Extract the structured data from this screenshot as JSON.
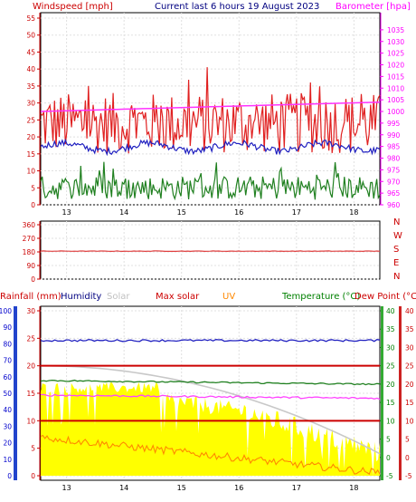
{
  "chart_data": [
    {
      "type": "line",
      "title": "Current last 6 hours 19 August 2023",
      "left_label": "Windspeed [mph]",
      "right_label": "Barometer [hpa]",
      "x": [
        "13",
        "14",
        "15",
        "16",
        "17",
        "18"
      ],
      "xlim": [
        12.55,
        18.45
      ],
      "ylim_left": [
        0,
        55
      ],
      "yticks_left": [
        "0",
        "5",
        "10",
        "15",
        "20",
        "25",
        "30",
        "35",
        "40",
        "45",
        "50",
        "55"
      ],
      "ylim_right": [
        960,
        1040
      ],
      "yticks_right": [
        "960",
        "965",
        "970",
        "975",
        "980",
        "985",
        "990",
        "995",
        "1000",
        "1005",
        "1010",
        "1015",
        "1020",
        "1025",
        "1030",
        "1035"
      ],
      "grid": true,
      "series": [
        {
          "color": "#e02020",
          "y_approx_mean": 24,
          "range": [
            15,
            38
          ]
        },
        {
          "color": "#2020c0",
          "y_approx_mean": 17,
          "range": [
            15,
            19
          ]
        },
        {
          "color": "#208020",
          "y_approx_mean": 5,
          "range": [
            1,
            12
          ]
        },
        {
          "color": "#ff33ff",
          "axis": "right",
          "start": 1000,
          "end": 1004
        }
      ]
    },
    {
      "type": "line",
      "yticks": [
        "0",
        "90",
        "180",
        "270",
        "360"
      ],
      "right_labels": [
        "N",
        "W",
        "S",
        "E",
        "N"
      ],
      "series": [
        {
          "color": "#e04040",
          "value": 185
        }
      ]
    },
    {
      "type": "area",
      "labels": {
        "rain": "Rainfall (mm)",
        "humidity": "Humidity",
        "solar": "Solar",
        "max_solar": "Max solar",
        "uv": "UV",
        "temperature": "Temperature (°C)",
        "dewpoint": "Dew Point (°C)"
      },
      "label_colors": {
        "rain": "#cc0000",
        "humidity": "#000080",
        "solar": "#c0c0c0",
        "max_solar": "#cc0000",
        "uv": "#ff8800",
        "temperature": "#008000",
        "dewpoint": "#cc0000"
      },
      "yticks_humidity": [
        "0",
        "10",
        "20",
        "30",
        "40",
        "50",
        "60",
        "70",
        "80",
        "90",
        "100"
      ],
      "yticks_rain": [
        "0",
        "5",
        "10",
        "15",
        "20",
        "25",
        "30"
      ],
      "yticks_temp": [
        "-5",
        "0",
        "5",
        "10",
        "15",
        "20",
        "25",
        "30",
        "35",
        "40"
      ],
      "yticks_dew": [
        "-5",
        "0",
        "5",
        "10",
        "15",
        "20",
        "25",
        "30",
        "35",
        "40"
      ],
      "series": [
        {
          "name": "Humidity",
          "color": "#2020c0",
          "approx": 82
        },
        {
          "name": "Temperature",
          "color": "#208020",
          "approx": 21
        },
        {
          "name": "Dew Point",
          "color": "#ff44ff",
          "approx": 17
        },
        {
          "name": "Max solar",
          "color": "#cc0000",
          "levels": [
            20,
            10
          ]
        },
        {
          "name": "Solar",
          "color": "#ffff00"
        },
        {
          "name": "UV",
          "color": "#ff8800"
        }
      ]
    }
  ]
}
